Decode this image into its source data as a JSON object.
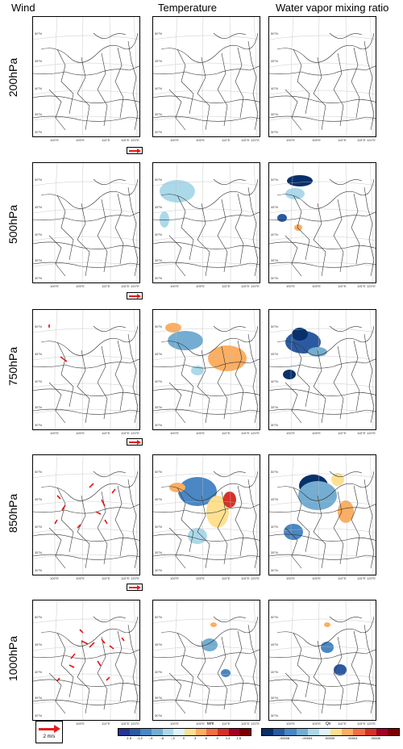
{
  "columns": [
    "Wind",
    "Temperature",
    "Water vapor mixing ratio"
  ],
  "rows": [
    "200hPa",
    "500hPa",
    "750hPa",
    "850hPa",
    "1000hPa"
  ],
  "map_labels": {
    "lat": [
      "50°N",
      "45°N",
      "40°N",
      "35°N",
      "30°N"
    ],
    "lon": [
      "100°E",
      "105°E",
      "110°E",
      "115°E",
      "120°E"
    ]
  },
  "wind_reference": {
    "label": "2 m/s",
    "color": "#e41a1c"
  },
  "temperature_colorbar": {
    "title": "tem",
    "ticks": [
      "-1.5",
      "-1.2",
      "-.9",
      "-.6",
      "-.3",
      "0",
      ".3",
      ".6",
      ".9",
      "1.2",
      "1.5"
    ],
    "colors": [
      "#253494",
      "#2c5aa0",
      "#4a87c4",
      "#74add1",
      "#abd9e9",
      "#e0f3f8",
      "#fee090",
      "#fdae61",
      "#f46d43",
      "#d73027",
      "#a50026",
      "#7f0000"
    ]
  },
  "vapor_colorbar": {
    "title": "Qv",
    "ticks": [
      "-.00008",
      "-.00004",
      ".00000",
      ".00004",
      ".00008"
    ],
    "colors": [
      "#08306b",
      "#2c5aa0",
      "#4a87c4",
      "#74add1",
      "#abd9e9",
      "#e0f3f8",
      "#fee090",
      "#fdae61",
      "#f46d43",
      "#d73027",
      "#a50026",
      "#7f0000"
    ]
  }
}
